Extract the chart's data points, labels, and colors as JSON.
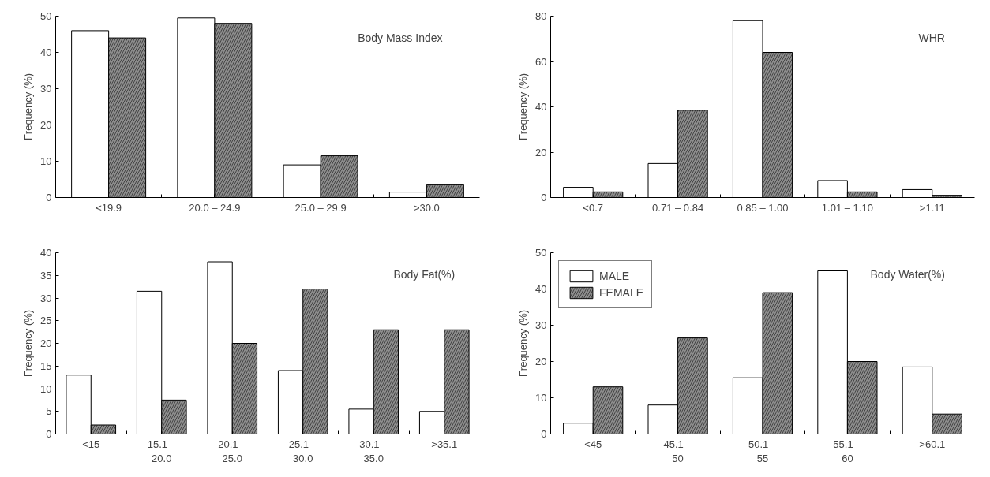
{
  "chart_data": [
    {
      "type": "bar",
      "title": "Body Mass Index",
      "ylabel": "Frequency (%)",
      "categories": [
        "<19.9",
        "20.0 – 24.9",
        "25.0 – 29.9",
        ">30.0"
      ],
      "ylim": [
        0,
        50
      ],
      "yticks": [
        0,
        10,
        20,
        30,
        40,
        50
      ],
      "grid": false,
      "legend": false,
      "series": [
        {
          "color": "#ffffff",
          "values": [
            46,
            49.5,
            9,
            1.5
          ]
        },
        {
          "color": "#8c8c8c",
          "values": [
            44,
            48,
            11.5,
            3.5
          ]
        }
      ]
    },
    {
      "type": "bar",
      "title": "WHR",
      "ylabel": "Frequency (%)",
      "categories": [
        "<0.7",
        "0.71 – 0.84",
        "0.85 – 1.00",
        "1.01 – 1.10",
        ">1.11"
      ],
      "ylim": [
        0,
        80
      ],
      "yticks": [
        0,
        20,
        40,
        60,
        80
      ],
      "grid": false,
      "legend": false,
      "series": [
        {
          "color": "#ffffff",
          "values": [
            4.5,
            15,
            78,
            7.5,
            3.5
          ]
        },
        {
          "color": "#8c8c8c",
          "values": [
            2.5,
            38.5,
            64,
            2.5,
            1
          ]
        }
      ]
    },
    {
      "type": "bar",
      "title": "Body Fat(%)",
      "ylabel": "Frequency (%)",
      "categories": [
        "<15",
        "15.1 –\n20.0",
        "20.1 –\n25.0",
        "25.1 –\n30.0",
        "30.1 –\n35.0",
        ">35.1"
      ],
      "ylim": [
        0,
        40
      ],
      "yticks": [
        0,
        5,
        10,
        15,
        20,
        25,
        30,
        35,
        40
      ],
      "grid": false,
      "legend": false,
      "series": [
        {
          "color": "#ffffff",
          "values": [
            13,
            31.5,
            38,
            14,
            5.5,
            5
          ]
        },
        {
          "color": "#8c8c8c",
          "values": [
            2,
            7.5,
            20,
            32,
            23,
            23
          ]
        }
      ]
    },
    {
      "type": "bar",
      "title": "Body Water(%)",
      "ylabel": "Frequency (%)",
      "categories": [
        "<45",
        "45.1 –\n50",
        "50.1 –\n55",
        "55.1 –\n60",
        ">60.1"
      ],
      "ylim": [
        0,
        50
      ],
      "yticks": [
        0,
        10,
        20,
        30,
        40,
        50
      ],
      "grid": false,
      "legend": "top left",
      "series": [
        {
          "name": "MALE",
          "color": "#ffffff",
          "values": [
            3,
            8,
            15.5,
            45,
            18.5
          ]
        },
        {
          "name": "FEMALE",
          "color": "#8c8c8c",
          "values": [
            13,
            26.5,
            39,
            20,
            5.5
          ]
        }
      ]
    }
  ]
}
